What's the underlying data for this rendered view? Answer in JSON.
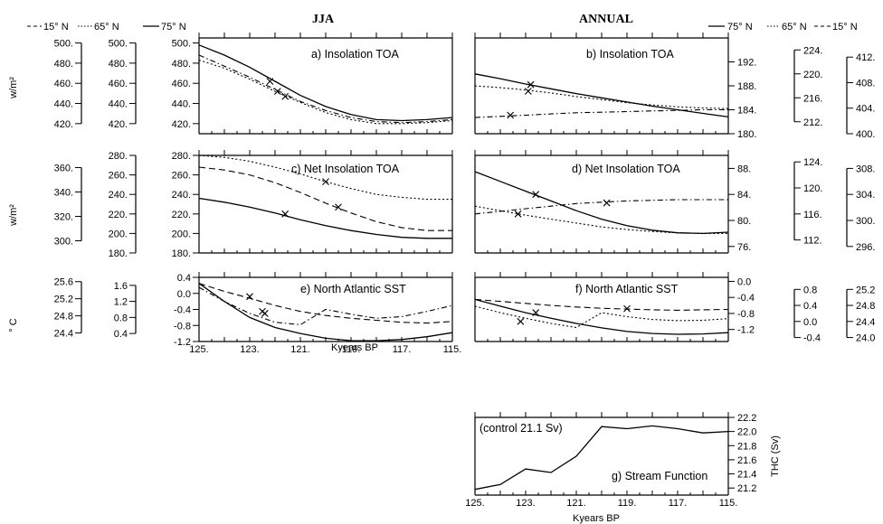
{
  "columns": {
    "left": "JJA",
    "right": "ANNUAL"
  },
  "legend_left": {
    "l15": "15° N",
    "l65": "65° N",
    "l75": "75° N"
  },
  "legend_right": {
    "l75": "75° N",
    "l65": "65° N",
    "l15": "15° N"
  },
  "units": {
    "wm2": "w/m²",
    "degc": "° C",
    "thc": "THC (Sv)"
  },
  "xlabel": "Kyears BP",
  "colors": {
    "ink": "#000000",
    "background": "#ffffff"
  },
  "chart_data": [
    {
      "id": "a",
      "type": "line",
      "title": "a) Insolation TOA",
      "x": [
        125,
        124,
        123,
        122,
        121,
        120,
        119,
        118,
        117,
        116,
        115
      ],
      "axes": [
        {
          "side": "left",
          "label": "15° N",
          "range": [
            410,
            505
          ],
          "ticks": [
            "420.",
            "440.",
            "460.",
            "480.",
            "500."
          ]
        },
        {
          "side": "left",
          "label": "65° N",
          "range": [
            410,
            505
          ],
          "ticks": [
            "420.",
            "440.",
            "460.",
            "480.",
            "500."
          ]
        },
        {
          "side": "left",
          "label": "75° N",
          "range": [
            410,
            505
          ],
          "ticks": [
            "420.",
            "440.",
            "460.",
            "480.",
            "500."
          ]
        }
      ],
      "series": [
        {
          "style": "solid",
          "y": [
            498,
            488,
            476,
            462,
            448,
            437,
            429,
            424,
            423,
            424,
            426
          ],
          "markers": [
            [
              122.2,
              462
            ]
          ]
        },
        {
          "style": "dot",
          "y": [
            483,
            475,
            464,
            452,
            441,
            431,
            424,
            420,
            420,
            421,
            423
          ],
          "markers": [
            [
              121.9,
              452
            ]
          ]
        },
        {
          "style": "dashdot",
          "y": [
            488,
            477,
            466,
            454,
            442,
            433,
            426,
            422,
            421,
            422,
            424
          ],
          "markers": [
            [
              121.6,
              447
            ]
          ]
        }
      ]
    },
    {
      "id": "b",
      "type": "line",
      "title": "b) Insolation TOA",
      "x": [
        125,
        124,
        123,
        122,
        121,
        120,
        119,
        118,
        117,
        116,
        115
      ],
      "axes": [
        {
          "side": "right",
          "label": "75° N",
          "range": [
            180,
            196
          ],
          "ticks": [
            "180.",
            "184.",
            "188.",
            "192."
          ]
        },
        {
          "side": "right",
          "label": "65° N",
          "range": [
            210,
            226
          ],
          "ticks": [
            "212.",
            "216.",
            "220.",
            "224."
          ]
        },
        {
          "side": "right",
          "label": "15° N",
          "range": [
            400,
            415
          ],
          "ticks": [
            "400.",
            "404.",
            "408.",
            "412."
          ]
        }
      ],
      "series": [
        {
          "style": "solid",
          "y": [
            190,
            189.2,
            188.3,
            187.5,
            186.7,
            186,
            185.3,
            184.6,
            184,
            183.4,
            182.8
          ],
          "markers": [
            [
              122.8,
              188.2
            ]
          ]
        },
        {
          "style": "dot",
          "y": [
            188,
            187.7,
            187.3,
            186.8,
            186.2,
            185.7,
            185.2,
            184.8,
            184.5,
            184.3,
            184.2
          ],
          "markers": [
            [
              122.9,
              187.1
            ]
          ]
        },
        {
          "style": "dashdot",
          "y": [
            182.7,
            182.9,
            183.1,
            183.3,
            183.5,
            183.6,
            183.7,
            183.8,
            183.9,
            184,
            184
          ],
          "markers": [
            [
              123.6,
              183.1
            ]
          ]
        }
      ]
    },
    {
      "id": "c",
      "type": "line",
      "title": "c) Net Insolation TOA",
      "x": [
        125,
        124,
        123,
        122,
        121,
        120,
        119,
        118,
        117,
        116,
        115
      ],
      "axes": [
        {
          "side": "left",
          "label": "15° N",
          "range": [
            290,
            370
          ],
          "ticks": [
            "300.",
            "320.",
            "340.",
            "360."
          ]
        },
        {
          "side": "left",
          "label": "65° N",
          "range": [
            180,
            280
          ],
          "ticks": [
            "180.",
            "200.",
            "220.",
            "240.",
            "260.",
            "280."
          ]
        },
        {
          "side": "left",
          "label": "75° N",
          "range": [
            180,
            280
          ],
          "ticks": [
            "180.",
            "200.",
            "220.",
            "240.",
            "260.",
            "280."
          ]
        }
      ],
      "series": [
        {
          "style": "solid",
          "y": [
            236,
            232,
            227,
            221,
            214,
            208,
            203,
            199,
            196,
            195,
            195
          ],
          "markers": [
            [
              121.6,
              220
            ]
          ]
        },
        {
          "style": "dash",
          "y": [
            268,
            265,
            260,
            252,
            242,
            231,
            221,
            212,
            206,
            203,
            203
          ],
          "markers": [
            [
              119.5,
              227
            ]
          ]
        },
        {
          "style": "dot",
          "y": [
            280,
            278,
            274,
            268,
            261,
            253,
            246,
            240,
            237,
            235,
            235
          ],
          "markers": [
            [
              120.0,
              253
            ]
          ]
        }
      ]
    },
    {
      "id": "d",
      "type": "line",
      "title": "d) Net Insolation TOA",
      "x": [
        125,
        124,
        123,
        122,
        121,
        120,
        119,
        118,
        117,
        116,
        115
      ],
      "axes": [
        {
          "side": "right",
          "label": "75° N",
          "range": [
            75,
            90
          ],
          "ticks": [
            "76.",
            "80.",
            "84.",
            "88."
          ]
        },
        {
          "side": "right",
          "label": "65° N",
          "range": [
            110,
            125
          ],
          "ticks": [
            "112.",
            "116.",
            "120.",
            "124."
          ]
        },
        {
          "side": "right",
          "label": "15° N",
          "range": [
            295,
            310
          ],
          "ticks": [
            "296.",
            "300.",
            "304.",
            "308."
          ]
        }
      ],
      "series": [
        {
          "style": "solid",
          "y": [
            87.5,
            86,
            84.5,
            83,
            81.5,
            80.2,
            79.2,
            78.5,
            78.1,
            78,
            78.2
          ],
          "markers": [
            [
              122.6,
              84
            ]
          ]
        },
        {
          "style": "dot",
          "y": [
            82.2,
            81.5,
            80.8,
            80.2,
            79.6,
            79,
            78.6,
            78.3,
            78.1,
            78,
            78
          ],
          "markers": [
            [
              123.3,
              81
            ]
          ]
        },
        {
          "style": "dashdot",
          "y": [
            81,
            81.4,
            81.8,
            82.2,
            82.6,
            82.8,
            83,
            83.1,
            83.2,
            83.2,
            83.2
          ],
          "markers": [
            [
              119.8,
              82.7
            ]
          ]
        }
      ]
    },
    {
      "id": "e",
      "type": "line",
      "title": "e) North Atlantic SST",
      "x": [
        125,
        124,
        123,
        122,
        121,
        120,
        119,
        118,
        117,
        116,
        115
      ],
      "axes": [
        {
          "side": "left",
          "label": "15° N",
          "range": [
            24.2,
            25.7
          ],
          "ticks": [
            "24.4",
            "24.8",
            "25.2",
            "25.6"
          ]
        },
        {
          "side": "left",
          "label": "65° N",
          "range": [
            0.2,
            1.8
          ],
          "ticks": [
            "0.4",
            "0.8",
            "1.2",
            "1.6"
          ]
        },
        {
          "side": "left",
          "label": "75° N",
          "range": [
            -1.2,
            0.4
          ],
          "ticks": [
            "-1.2",
            "-0.8",
            "-0.4",
            "0.0",
            "0.4"
          ]
        }
      ],
      "series": [
        {
          "style": "solid",
          "y": [
            0.25,
            -0.2,
            -0.6,
            -0.85,
            -1.0,
            -1.12,
            -1.18,
            -1.18,
            -1.15,
            -1.08,
            -0.98
          ],
          "markers": [
            [
              122.4,
              -0.5
            ]
          ]
        },
        {
          "style": "dash",
          "y": [
            0.25,
            0.05,
            -0.12,
            -0.3,
            -0.45,
            -0.55,
            -0.62,
            -0.67,
            -0.72,
            -0.74,
            -0.7
          ],
          "markers": [
            [
              123.0,
              -0.08
            ]
          ]
        },
        {
          "style": "dashdot",
          "y": [
            0.15,
            -0.2,
            -0.5,
            -0.72,
            -0.78,
            -0.4,
            -0.52,
            -0.62,
            -0.58,
            -0.45,
            -0.3
          ],
          "markers": [
            [
              122.5,
              -0.45
            ]
          ]
        }
      ]
    },
    {
      "id": "f",
      "type": "line",
      "title": "f) North Atlantic SST",
      "x": [
        125,
        124,
        123,
        122,
        121,
        120,
        119,
        118,
        117,
        116,
        115
      ],
      "axes": [
        {
          "side": "right",
          "label": "75° N",
          "range": [
            -1.5,
            0.1
          ],
          "ticks": [
            "-1.2",
            "-0.8",
            "-0.4",
            "0.0"
          ]
        },
        {
          "side": "right",
          "label": "65° N",
          "range": [
            -0.5,
            1.1
          ],
          "ticks": [
            "-0.4",
            "0.0",
            "0.4",
            "0.8"
          ]
        },
        {
          "side": "right",
          "label": "15° N",
          "range": [
            23.9,
            25.5
          ],
          "ticks": [
            "24.0",
            "24.4",
            "24.8",
            "25.2"
          ]
        }
      ],
      "series": [
        {
          "style": "solid",
          "y": [
            -0.45,
            -0.62,
            -0.78,
            -0.92,
            -1.05,
            -1.16,
            -1.25,
            -1.3,
            -1.32,
            -1.31,
            -1.28
          ],
          "markers": [
            [
              122.6,
              -0.78
            ]
          ]
        },
        {
          "style": "dash",
          "y": [
            -0.45,
            -0.5,
            -0.55,
            -0.6,
            -0.64,
            -0.67,
            -0.69,
            -0.71,
            -0.72,
            -0.71,
            -0.7
          ],
          "markers": [
            [
              119.0,
              -0.68
            ]
          ]
        },
        {
          "style": "dot",
          "y": [
            -0.62,
            -0.78,
            -0.92,
            -1.05,
            -1.15,
            -0.78,
            -0.88,
            -0.95,
            -0.98,
            -0.97,
            -0.93
          ],
          "markers": [
            [
              123.2,
              -1.0
            ]
          ]
        }
      ]
    },
    {
      "id": "g",
      "type": "line",
      "title": "g) Stream Function",
      "annotation": "(control 21.1 Sv)",
      "ylabel": "THC (Sv)",
      "x": [
        125,
        124,
        123,
        122,
        121,
        120,
        119,
        118,
        117,
        116,
        115
      ],
      "axes": [
        {
          "side": "right",
          "label": "THC (Sv)",
          "range": [
            21.1,
            22.2
          ],
          "ticks": [
            "21.2",
            "21.4",
            "21.6",
            "21.8",
            "22.0",
            "22.2"
          ]
        }
      ],
      "series": [
        {
          "style": "solid",
          "y": [
            21.18,
            21.25,
            21.47,
            21.42,
            21.65,
            22.07,
            22.04,
            22.08,
            22.04,
            21.98,
            22.0
          ],
          "markers": []
        }
      ]
    }
  ],
  "x_axis": {
    "range": [
      125,
      115
    ],
    "ticks": [
      "125.",
      "123.",
      "121.",
      "119.",
      "117.",
      "115."
    ]
  }
}
